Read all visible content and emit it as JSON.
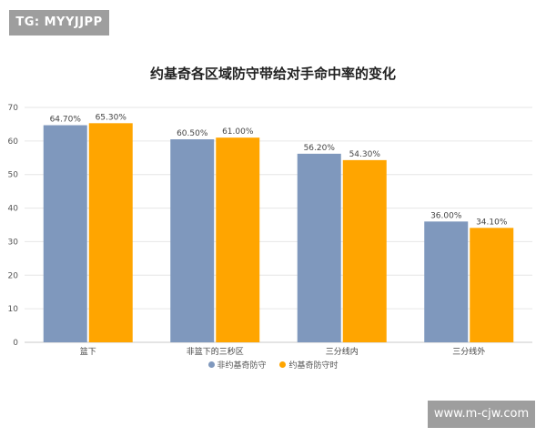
{
  "badge": {
    "text": "TG: MYYJJPP"
  },
  "watermark": {
    "text": "www.m-cjw.com"
  },
  "colors": {
    "series1": "#7f98bd",
    "series2": "#ffa500"
  },
  "chart_data": {
    "type": "bar",
    "title": "约基奇各区域防守带给对手命中率的变化",
    "categories": [
      "篮下",
      "非篮下的三秒区",
      "三分线内",
      "三分线外"
    ],
    "series": [
      {
        "name": "非约基奇防守",
        "values": [
          64.7,
          60.5,
          56.2,
          36.0
        ],
        "labels": [
          "64.70%",
          "60.50%",
          "56.20%",
          "36.00%"
        ]
      },
      {
        "name": "约基奇防守时",
        "values": [
          65.3,
          61.0,
          54.3,
          34.1
        ],
        "labels": [
          "65.30%",
          "61.00%",
          "54.30%",
          "34.10%"
        ]
      }
    ],
    "ylim": [
      0,
      70
    ],
    "yticks": [
      0,
      10,
      20,
      30,
      40,
      50,
      60,
      70
    ],
    "xlabel": "",
    "ylabel": "",
    "grid": true,
    "legend": "bottom"
  }
}
